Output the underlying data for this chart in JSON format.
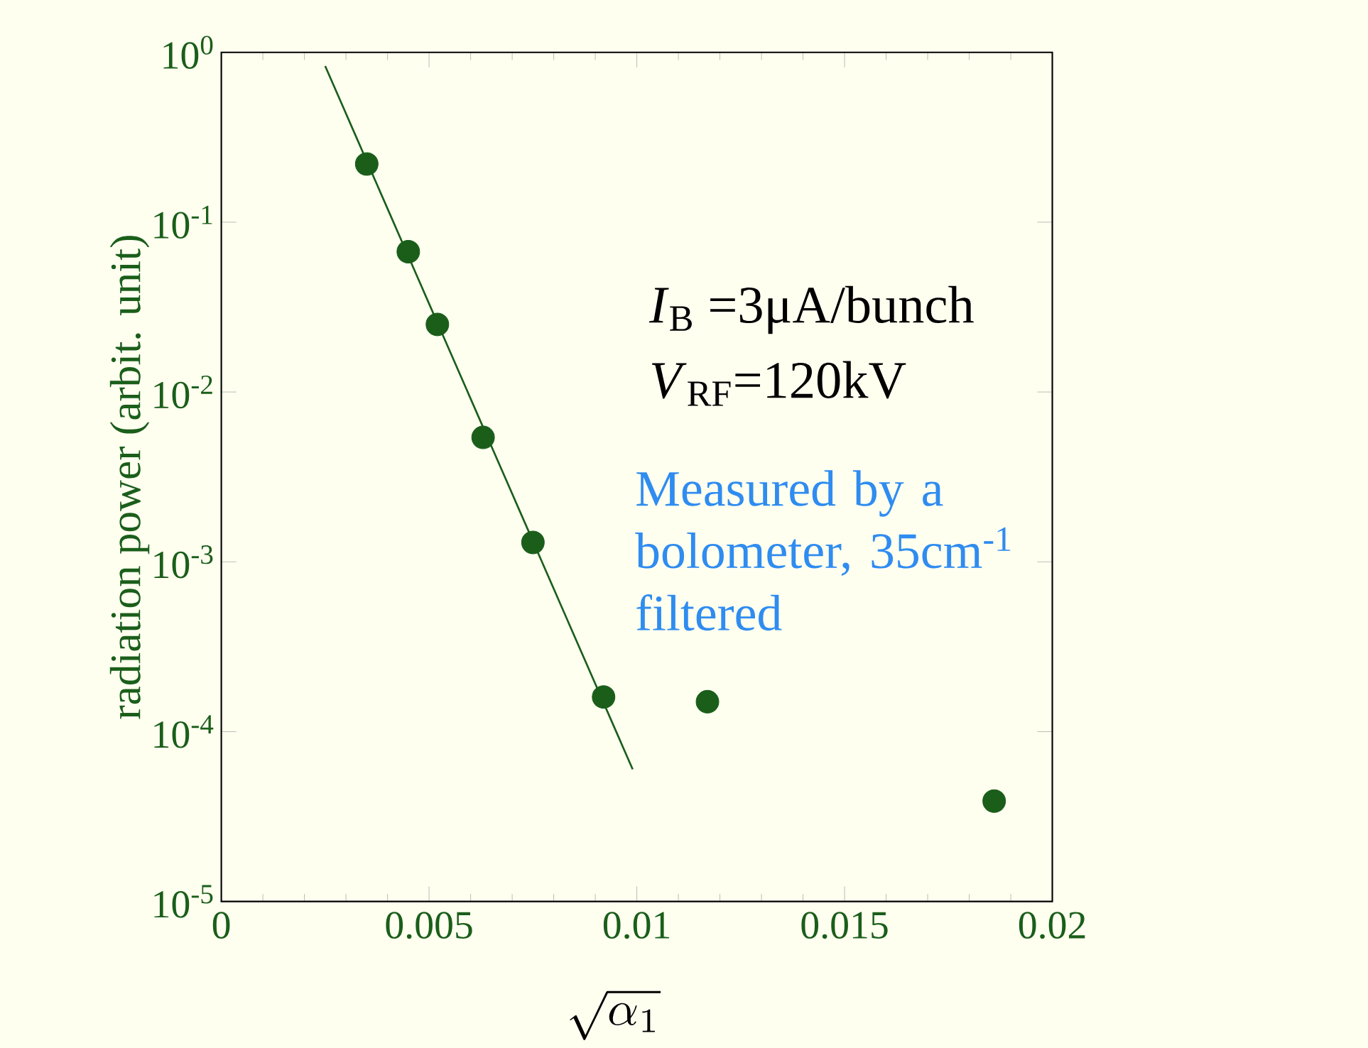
{
  "chart_data": {
    "type": "scatter",
    "xlabel": "\\sqrt{\\alpha_{1}}",
    "ylabel": "radiation power (arbit. unit)",
    "annotations": [
      "*I*$_{B}$ =3μA/bunch",
      "*V*$_{RF}$=120kV",
      "Measured by a bolometer, 35cm$^{-1}$ filtered"
    ],
    "series": [
      {
        "type": "scatter",
        "color": "#1a5e1a",
        "marker": "circle",
        "x": [
          0.0035,
          0.0045,
          0.0052,
          0.0063,
          0.0075,
          0.0092,
          0.0117,
          0.0186
        ],
        "values": [
          0.22,
          0.067,
          0.025,
          0.0054,
          0.0013,
          0.00016,
          0.00015,
          3.9e-05
        ]
      },
      {
        "type": "line",
        "color": "#1a5e1a",
        "marker": "none",
        "x": [
          0.0025,
          0.0099
        ],
        "values": [
          0.83,
          6e-05
        ]
      }
    ],
    "log": "y",
    "xlim": [
      0,
      0.02
    ],
    "ylim": [
      1e-05,
      1
    ],
    "xticks": [
      0,
      0.005,
      0.01,
      0.015,
      0.02
    ],
    "yticks": [
      {
        "value": 1,
        "label": "10$^{0}$"
      },
      {
        "value": 0.1,
        "label": "10$^{-1}$"
      },
      {
        "value": 0.01,
        "label": "10$^{-2}$"
      },
      {
        "value": 0.001,
        "label": "10$^{-3}$"
      },
      {
        "value": 0.0001,
        "label": "10$^{-4}$"
      },
      {
        "value": 1e-05,
        "label": "10$^{-5}$"
      }
    ]
  }
}
